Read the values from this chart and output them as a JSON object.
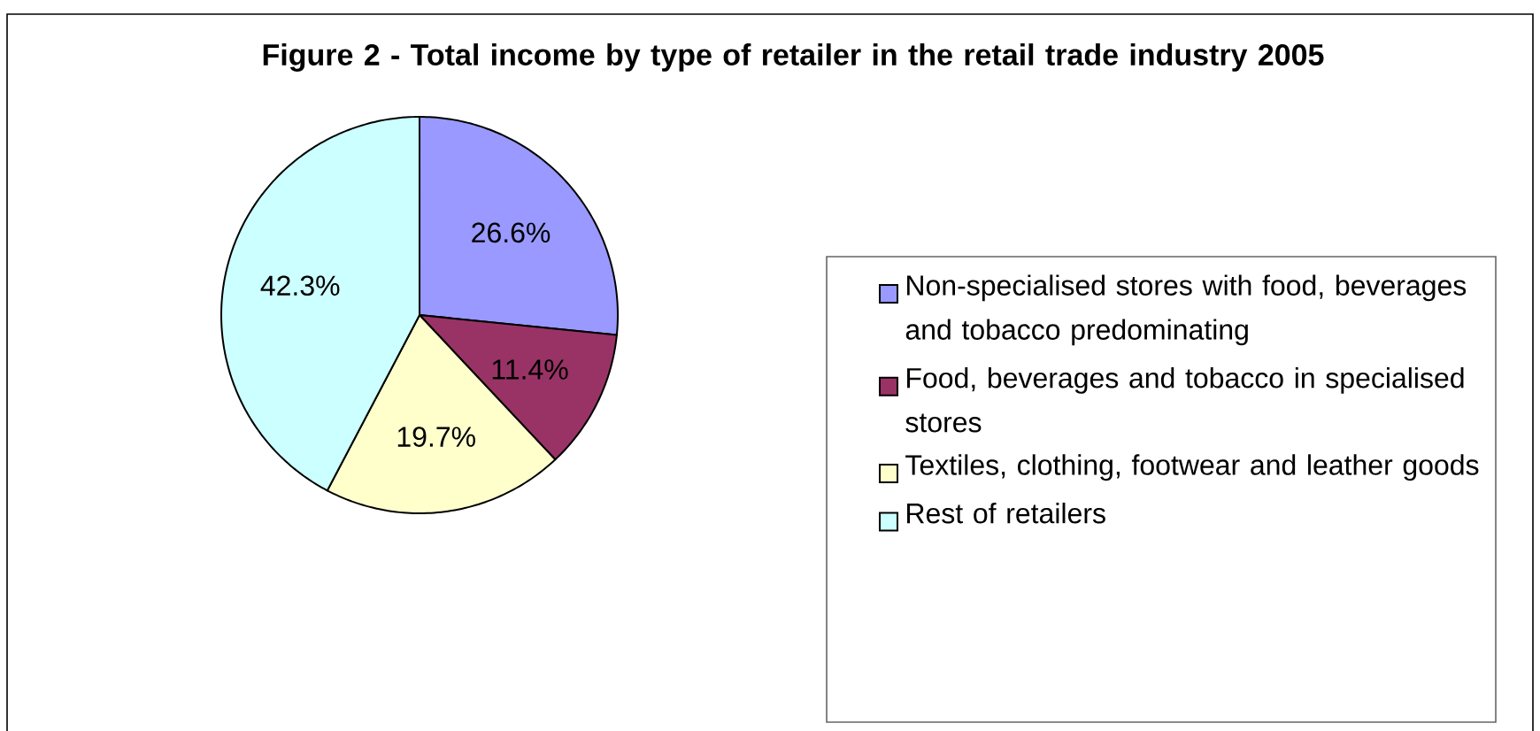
{
  "chart_data": {
    "type": "pie",
    "title": "Figure 2 - Total income by type of retailer in the retail trade industry 2005",
    "categories": [
      "Non-specialised stores with food, beverages and tobacco predominating",
      "Food, beverages and tobacco in specialised stores",
      "Textiles, clothing, footwear and leather goods",
      "Rest of retailers"
    ],
    "values": [
      26.6,
      11.4,
      19.7,
      42.3
    ],
    "value_labels": [
      "26.6%",
      "11.4%",
      "19.7%",
      "42.3%"
    ],
    "colors": [
      "#9999ff",
      "#993366",
      "#ffffcc",
      "#ccffff"
    ],
    "legend": "right"
  }
}
